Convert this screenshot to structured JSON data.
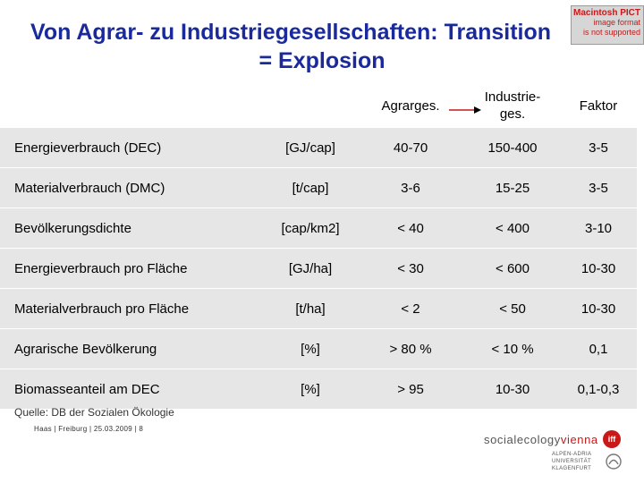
{
  "title": {
    "line1": "Von Agrar- zu Industriegesellschaften: Transition",
    "line2": "= Explosion"
  },
  "pict_notice": {
    "line1": "Macintosh PICT",
    "line2": "image format",
    "line3": "is not supported"
  },
  "table": {
    "headers": {
      "agrar": "Agrarges.",
      "industrie_line1": "Industrie-",
      "industrie_line2": "ges.",
      "faktor": "Faktor"
    },
    "rows": [
      {
        "label": "Energieverbrauch (DEC)",
        "unit": "[GJ/cap]",
        "agrar": "40-70",
        "industrie": "150-400",
        "faktor": "3-5"
      },
      {
        "label": "Materialverbrauch (DMC)",
        "unit": "[t/cap]",
        "agrar": "3-6",
        "industrie": "15-25",
        "faktor": "3-5"
      },
      {
        "label": "Bevölkerungsdichte",
        "unit": "[cap/km2]",
        "agrar": "< 40",
        "industrie": "< 400",
        "faktor": "3-10"
      },
      {
        "label": "Energieverbrauch pro Fläche",
        "unit": "[GJ/ha]",
        "agrar": "< 30",
        "industrie": "< 600",
        "faktor": "10-30"
      },
      {
        "label": "Materialverbrauch pro Fläche",
        "unit": "[t/ha]",
        "agrar": "< 2",
        "industrie": "< 50",
        "faktor": "10-30"
      },
      {
        "label": "Agrarische Bevölkerung",
        "unit": "[%]",
        "agrar": "> 80 %",
        "industrie": "< 10 %",
        "faktor": "0,1"
      },
      {
        "label": "Biomasseanteil am DEC",
        "unit": "[%]",
        "agrar": "> 95",
        "industrie": "10-30",
        "faktor": "0,1-0,3"
      }
    ]
  },
  "source": "Quelle: DB der Sozialen Ökologie",
  "footer": "Haas | Freiburg | 25.03.2009 | 8",
  "logos": {
    "socialecology_a": "socialecology",
    "socialecology_b": "vienna",
    "iff": "iff",
    "uni_line1": "ALPEN-ADRIA",
    "uni_line2": "UNIVERSITÄT",
    "uni_line3": "KLAGENFURT"
  },
  "colors": {
    "title": "#1a2a9c",
    "row_bg": "#e6e6e6",
    "arrow": "#c81818",
    "pict_text": "#c81818"
  }
}
